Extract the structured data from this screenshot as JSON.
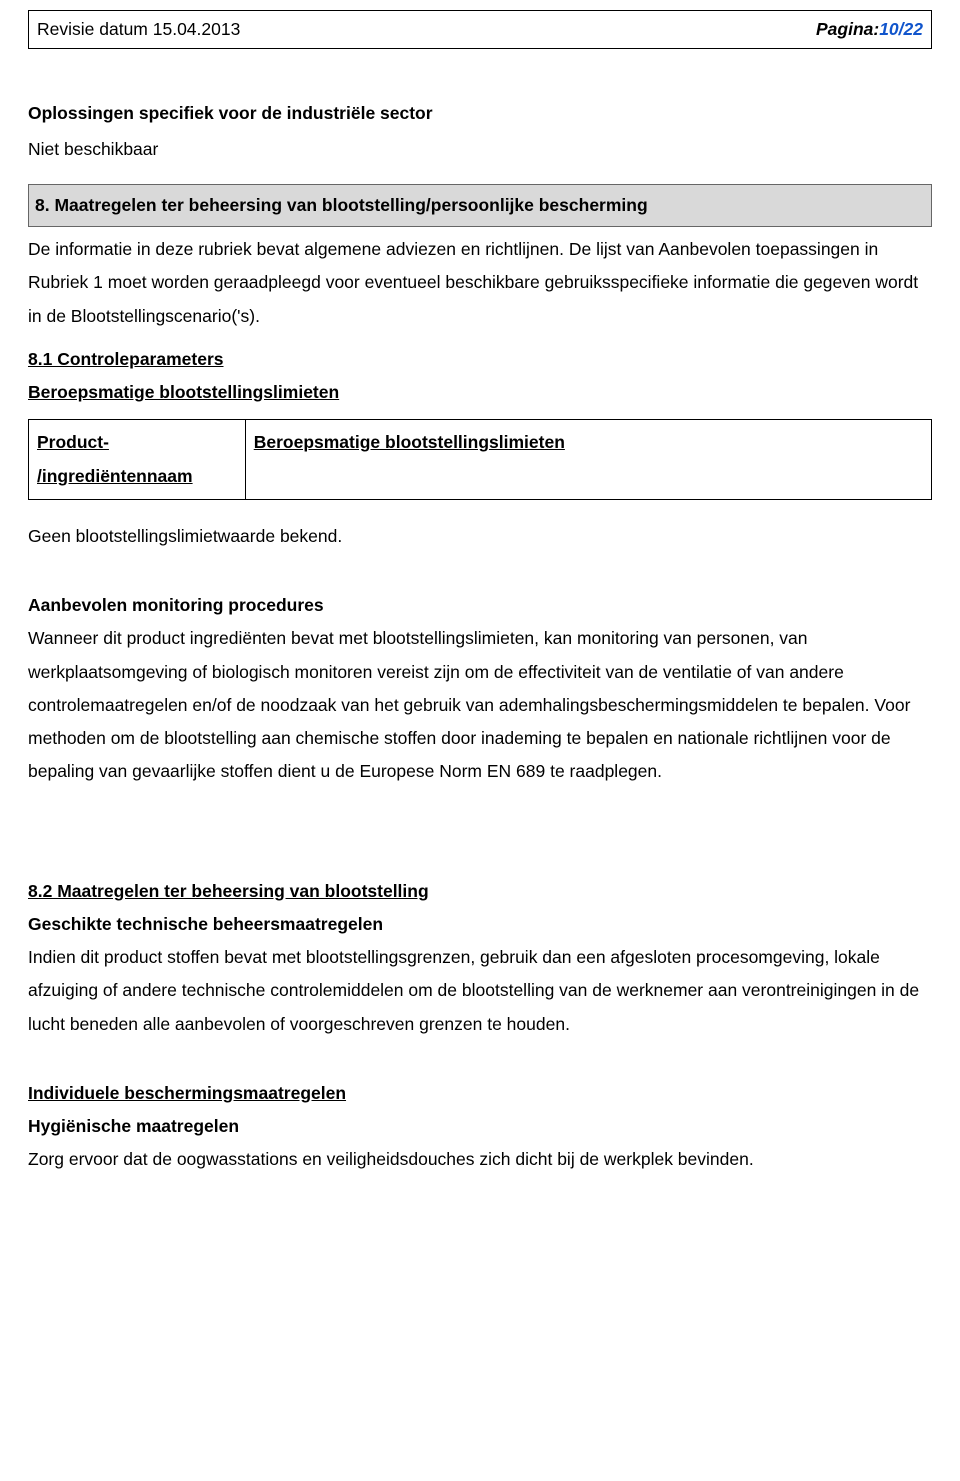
{
  "header": {
    "revision_label": "Revisie datum 15.04.2013",
    "pagina_label": "Pagina:",
    "page_number": "10/22"
  },
  "intro": {
    "solutions_heading": "Oplossingen specifiek voor de industriële sector",
    "not_available": "Niet beschikbaar"
  },
  "section8": {
    "box_title": "8. Maatregelen ter beheersing van blootstelling/persoonlijke bescherming",
    "intro_text": "De informatie in deze rubriek bevat algemene adviezen en richtlijnen. De lijst van Aanbevolen toepassingen in Rubriek 1 moet worden geraadpleegd voor eventueel beschikbare gebruiksspecifieke informatie die gegeven wordt in de Blootstellingscenario('s).",
    "s81_heading": "8.1 Controleparameters",
    "occ_limits_heading": "Beroepsmatige blootstellingslimieten",
    "table": {
      "col1_header": "Product- /ingrediëntennaam",
      "col2_header": "Beroepsmatige blootstellingslimieten"
    },
    "no_limit_known": "Geen blootstellingslimietwaarde bekend.",
    "monitoring_heading": "Aanbevolen monitoring procedures",
    "monitoring_text": "Wanneer dit product ingrediënten bevat met blootstellingslimieten, kan monitoring van personen, van werkplaatsomgeving of biologisch monitoren vereist zijn om de effectiviteit van de ventilatie of van andere controlemaatregelen en/of de noodzaak van het gebruik van ademhalingsbeschermingsmiddelen te bepalen. Voor methoden om de blootstelling aan chemische stoffen door inademing te bepalen en nationale richtlijnen voor de bepaling van gevaarlijke stoffen dient u de Europese Norm EN 689 te raadplegen.",
    "s82_heading": "8.2 Maatregelen ter beheersing van blootstelling",
    "tech_controls_heading": "Geschikte technische beheersmaatregelen",
    "tech_controls_text": "Indien dit product stoffen bevat met blootstellingsgrenzen, gebruik dan een afgesloten procesomgeving, lokale afzuiging of andere technische controlemiddelen om de blootstelling van de werknemer aan verontreinigingen in de lucht beneden alle aanbevolen of voorgeschreven grenzen te houden.",
    "indiv_heading": "Individuele beschermingsmaatregelen",
    "hygiene_heading": "Hygiënische maatregelen",
    "hygiene_text": "Zorg ervoor dat de oogwasstations en veiligheidsdouches zich dicht bij de werkplek bevinden."
  }
}
